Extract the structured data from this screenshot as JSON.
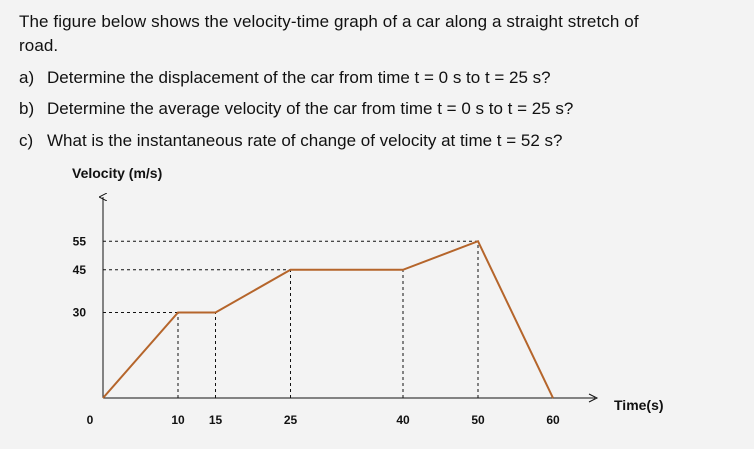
{
  "question": {
    "intro_line1": "The figure below shows the velocity-time graph of a car along a straight stretch of",
    "intro_line2": "road.",
    "parts": [
      {
        "label": "a)",
        "text": "Determine the displacement of the car from time t = 0 s to t = 25 s?"
      },
      {
        "label": "b)",
        "text": "Determine the average velocity of the car from time t = 0 s to t = 25 s?"
      },
      {
        "label": "c)",
        "text": "What is the instantaneous rate of change of velocity at time t = 52 s?"
      }
    ]
  },
  "chart_data": {
    "type": "line",
    "title": "",
    "ylabel": "Velocity (m/s)",
    "xlabel": "Time(s)",
    "x_ticks": [
      0,
      10,
      15,
      25,
      40,
      50,
      60
    ],
    "y_ticks": [
      30,
      45,
      55
    ],
    "xlim": [
      0,
      60
    ],
    "ylim": [
      0,
      55
    ],
    "series": [
      {
        "x": [
          0,
          10,
          15,
          25,
          40,
          50,
          60
        ],
        "y": [
          0,
          30,
          30,
          45,
          45,
          55,
          0
        ]
      }
    ],
    "line_color": "#b5652b",
    "guide_color": "#111111"
  }
}
